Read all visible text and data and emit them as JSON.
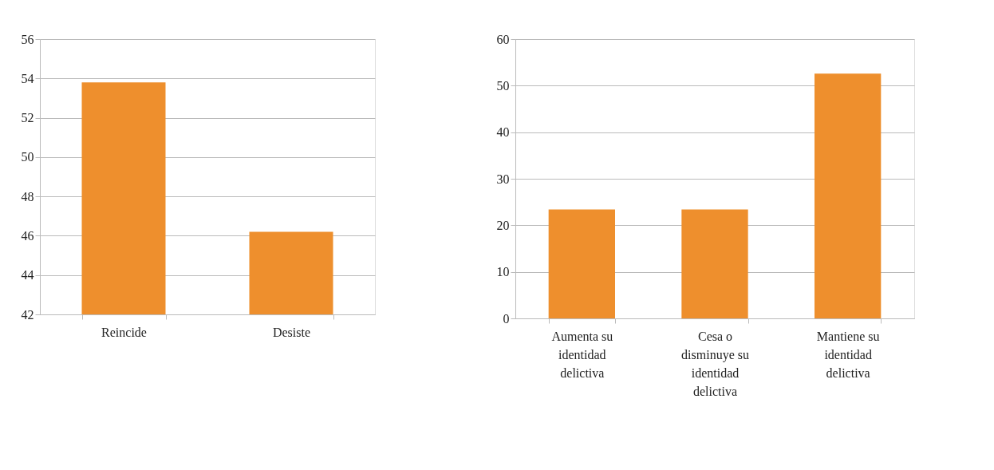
{
  "chart_data": [
    {
      "type": "bar",
      "categories": [
        "Reincide",
        "Desiste"
      ],
      "values": [
        53.8,
        46.2
      ],
      "color": "#ee8f2d",
      "ylim": [
        42,
        56
      ],
      "yticks": [
        42,
        44,
        46,
        48,
        50,
        52,
        54,
        56
      ],
      "grid": "y"
    },
    {
      "type": "bar",
      "categories": [
        "Aumenta su identidad delictiva",
        "Cesa o disminuye su identidad delictiva",
        "Mantiene su identidad delictiva"
      ],
      "values": [
        23.4,
        23.4,
        52.6
      ],
      "color": "#ee8f2d",
      "ylim": [
        0,
        60
      ],
      "yticks": [
        0,
        10,
        20,
        30,
        40,
        50,
        60
      ],
      "grid": "y"
    }
  ]
}
